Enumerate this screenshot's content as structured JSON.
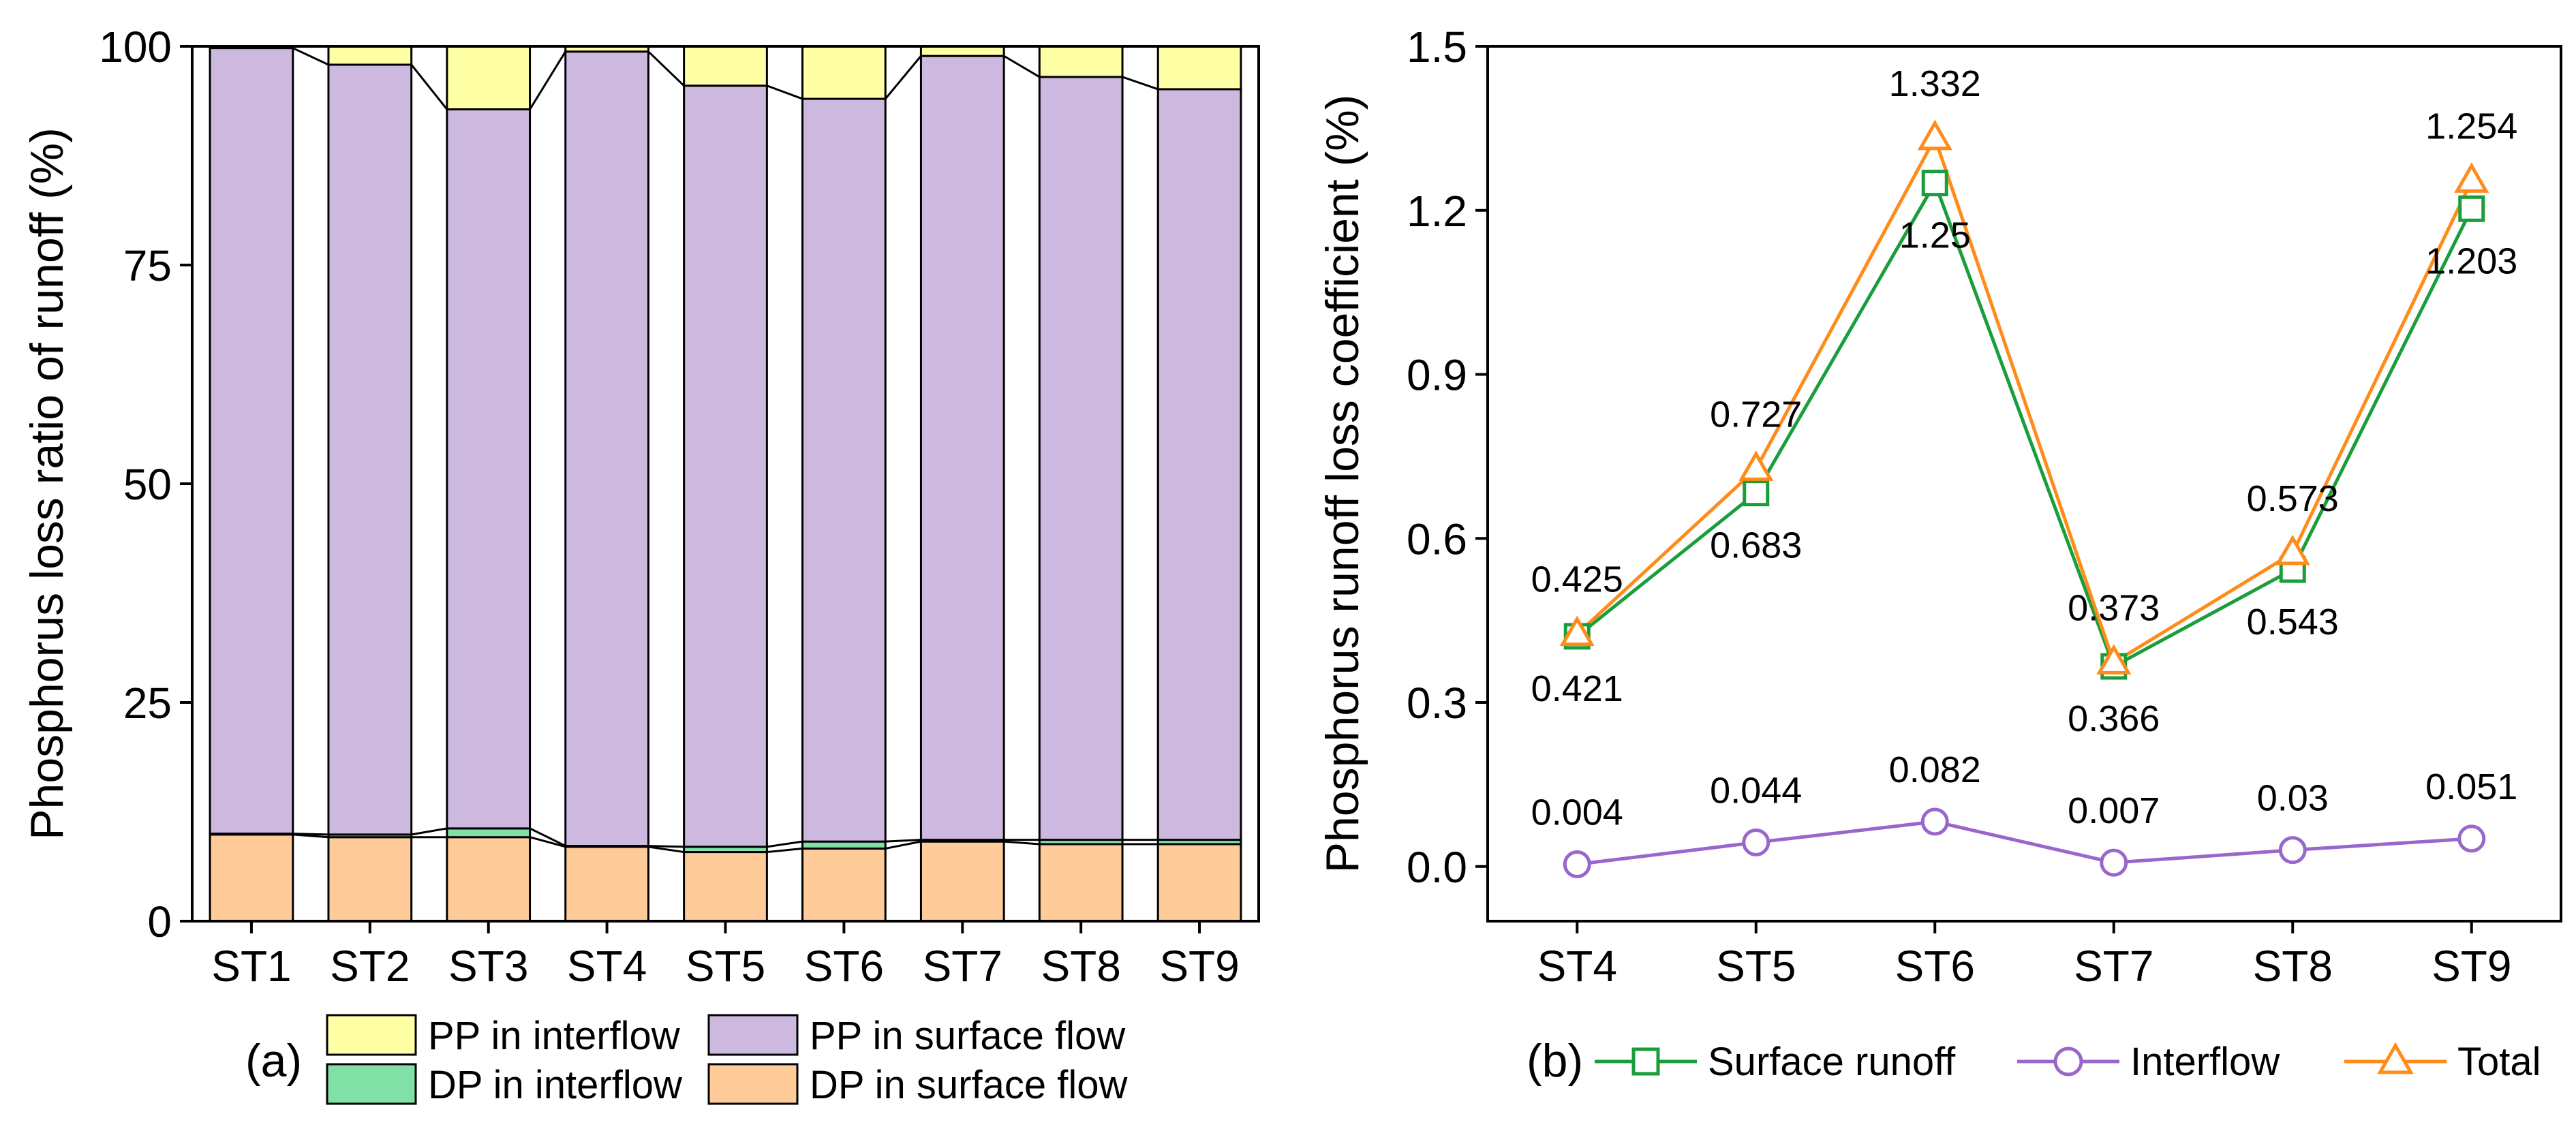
{
  "colors": {
    "pp_interflow": "#ffffa6",
    "pp_surface": "#cdb8e0",
    "dp_interflow": "#80e0a6",
    "dp_surface": "#ffcc99",
    "surface_runoff": "#1a9e3c",
    "interflow": "#9966cc",
    "total": "#ff8c1a"
  },
  "chart_data": [
    {
      "panel": "(a)",
      "type": "bar",
      "stacked": true,
      "categories": [
        "ST1",
        "ST2",
        "ST3",
        "ST4",
        "ST5",
        "ST6",
        "ST7",
        "ST8",
        "ST9"
      ],
      "series": [
        {
          "name": "DP in surface flow",
          "color_key": "dp_surface",
          "values": [
            9.9,
            9.6,
            9.6,
            8.5,
            7.9,
            8.3,
            9.1,
            8.8,
            8.8
          ]
        },
        {
          "name": "DP in interflow",
          "color_key": "dp_interflow",
          "values": [
            0.1,
            0.3,
            1.0,
            0.1,
            0.6,
            0.8,
            0.2,
            0.5,
            0.5
          ]
        },
        {
          "name": "PP in surface flow",
          "color_key": "pp_surface",
          "values": [
            89.8,
            88.0,
            82.2,
            90.8,
            87.0,
            84.9,
            89.6,
            87.2,
            85.8
          ]
        },
        {
          "name": "PP in interflow",
          "color_key": "pp_interflow",
          "values": [
            0.2,
            2.1,
            7.2,
            0.6,
            4.5,
            6.0,
            1.1,
            3.5,
            4.9
          ]
        }
      ],
      "ylabel": "Phosphorus loss ratio of runoff (%)",
      "xlabel": "",
      "ylim": [
        0,
        100
      ],
      "yticks": [
        0,
        25,
        50,
        75,
        100
      ],
      "legend_order": [
        "PP in interflow",
        "PP in surface flow",
        "DP in interflow",
        "DP in surface flow"
      ],
      "legend_position": "bottom"
    },
    {
      "panel": "(b)",
      "type": "line",
      "categories": [
        "ST4",
        "ST5",
        "ST6",
        "ST7",
        "ST8",
        "ST9"
      ],
      "series": [
        {
          "name": "Surface runoff",
          "marker": "square",
          "color_key": "surface_runoff",
          "values": [
            0.421,
            0.683,
            1.25,
            0.366,
            0.543,
            1.203
          ],
          "labels": [
            "0.421",
            "0.683",
            "1.25",
            "0.366",
            "0.543",
            "1.203"
          ]
        },
        {
          "name": "Interflow",
          "marker": "circle",
          "color_key": "interflow",
          "values": [
            0.004,
            0.044,
            0.082,
            0.007,
            0.03,
            0.051
          ],
          "labels": [
            "0.004",
            "0.044",
            "0.082",
            "0.007",
            "0.03",
            "0.051"
          ]
        },
        {
          "name": "Total",
          "marker": "triangle",
          "color_key": "total",
          "values": [
            0.425,
            0.727,
            1.332,
            0.373,
            0.573,
            1.254
          ],
          "labels": [
            "0.425",
            "0.727",
            "1.332",
            "0.373",
            "0.573",
            "1.254"
          ]
        }
      ],
      "ylabel": "Phosphorus runoff loss coefficient (%)",
      "xlabel": "",
      "ylim": [
        -0.1,
        1.5
      ],
      "yticks": [
        0.0,
        0.3,
        0.6,
        0.9,
        1.2,
        1.5
      ],
      "ytick_labels": [
        "0.0",
        "0.3",
        "0.6",
        "0.9",
        "1.2",
        "1.5"
      ],
      "legend_position": "bottom"
    }
  ]
}
